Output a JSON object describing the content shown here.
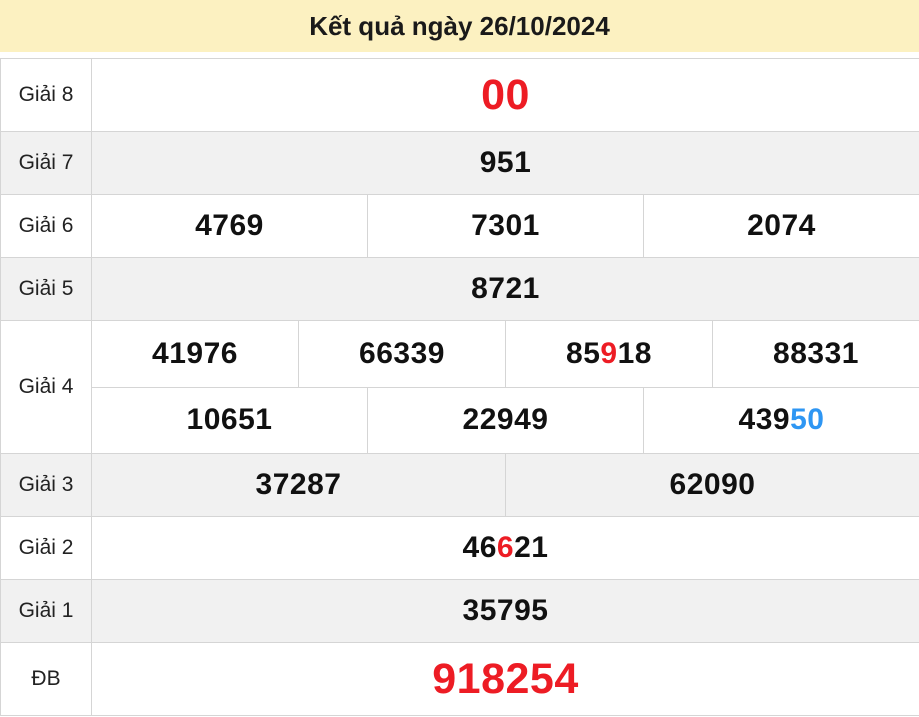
{
  "header": {
    "title": "Kết quả ngày 26/10/2024",
    "background": "#fcf1c1"
  },
  "colors": {
    "red": "#ed1c24",
    "blue": "#2e96f3",
    "black": "#111111",
    "shaded_row_bg": "#f1f1f1",
    "border": "#d5d5d5"
  },
  "table": {
    "rows": [
      {
        "label": "Giải 8",
        "shaded": false,
        "big": true,
        "lines": [
          [
            {
              "segments": [
                {
                  "t": "00",
                  "c": "red"
                }
              ]
            }
          ]
        ]
      },
      {
        "label": "Giải 7",
        "shaded": true,
        "big": false,
        "lines": [
          [
            {
              "segments": [
                {
                  "t": "951"
                }
              ]
            }
          ]
        ]
      },
      {
        "label": "Giải 6",
        "shaded": false,
        "big": false,
        "lines": [
          [
            {
              "segments": [
                {
                  "t": "4769"
                }
              ]
            },
            {
              "segments": [
                {
                  "t": "7301"
                }
              ]
            },
            {
              "segments": [
                {
                  "t": "2074"
                }
              ]
            }
          ]
        ]
      },
      {
        "label": "Giải 5",
        "shaded": true,
        "big": false,
        "lines": [
          [
            {
              "segments": [
                {
                  "t": "8721"
                }
              ]
            }
          ]
        ]
      },
      {
        "label": "Giải 4",
        "shaded": false,
        "big": false,
        "lines": [
          [
            {
              "segments": [
                {
                  "t": "41976"
                }
              ]
            },
            {
              "segments": [
                {
                  "t": "66339"
                }
              ]
            },
            {
              "segments": [
                {
                  "t": "85"
                },
                {
                  "t": "9",
                  "c": "red"
                },
                {
                  "t": "18"
                }
              ]
            },
            {
              "segments": [
                {
                  "t": "88331"
                }
              ]
            }
          ],
          [
            {
              "segments": [
                {
                  "t": "10651"
                }
              ]
            },
            {
              "segments": [
                {
                  "t": "22949"
                }
              ]
            },
            {
              "segments": [
                {
                  "t": "439"
                },
                {
                  "t": "50",
                  "c": "blue"
                }
              ]
            }
          ]
        ]
      },
      {
        "label": "Giải 3",
        "shaded": true,
        "big": false,
        "lines": [
          [
            {
              "segments": [
                {
                  "t": "37287"
                }
              ]
            },
            {
              "segments": [
                {
                  "t": "62090"
                }
              ]
            }
          ]
        ]
      },
      {
        "label": "Giải 2",
        "shaded": false,
        "big": false,
        "lines": [
          [
            {
              "segments": [
                {
                  "t": "46"
                },
                {
                  "t": "6",
                  "c": "red"
                },
                {
                  "t": "21"
                }
              ]
            }
          ]
        ]
      },
      {
        "label": "Giải 1",
        "shaded": true,
        "big": false,
        "lines": [
          [
            {
              "segments": [
                {
                  "t": "35795"
                }
              ]
            }
          ]
        ]
      },
      {
        "label": "ĐB",
        "shaded": false,
        "big": true,
        "lines": [
          [
            {
              "segments": [
                {
                  "t": "918254",
                  "c": "red"
                }
              ]
            }
          ]
        ]
      }
    ]
  }
}
